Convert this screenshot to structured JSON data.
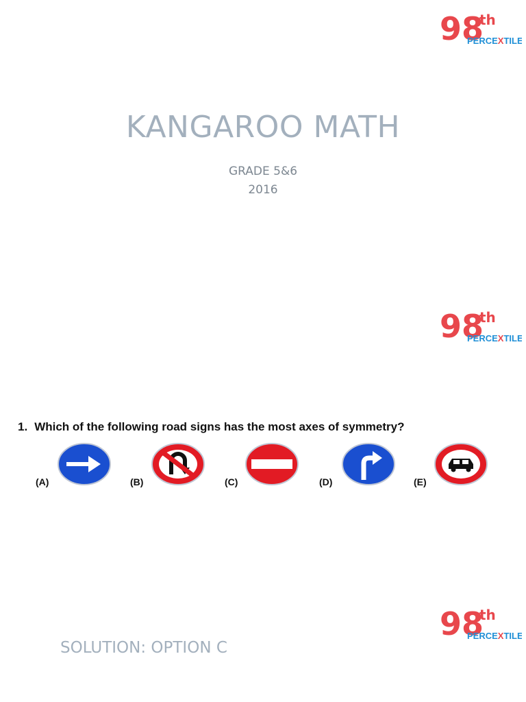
{
  "logo": {
    "number": "98",
    "suffix": "th",
    "word_prefix": "PERCE",
    "word_x": "X",
    "word_suffix": "TILE",
    "colors": {
      "red": "#e8474c",
      "blue": "#1f8fd6"
    }
  },
  "slide1": {
    "title": "KANGAROO MATH",
    "grade": "GRADE 5&6",
    "year": "2016"
  },
  "slide2": {
    "question_number": "1.",
    "question_text": "Which of the following road signs has the most axes of symmetry?",
    "options": [
      {
        "label": "(A)",
        "sign": "blue-arrow-right-sign"
      },
      {
        "label": "(B)",
        "sign": "no-u-turn-sign"
      },
      {
        "label": "(C)",
        "sign": "no-entry-sign"
      },
      {
        "label": "(D)",
        "sign": "blue-turn-right-sign"
      },
      {
        "label": "(E)",
        "sign": "no-cars-sign"
      }
    ]
  },
  "slide3": {
    "solution": "SOLUTION: OPTION C"
  }
}
